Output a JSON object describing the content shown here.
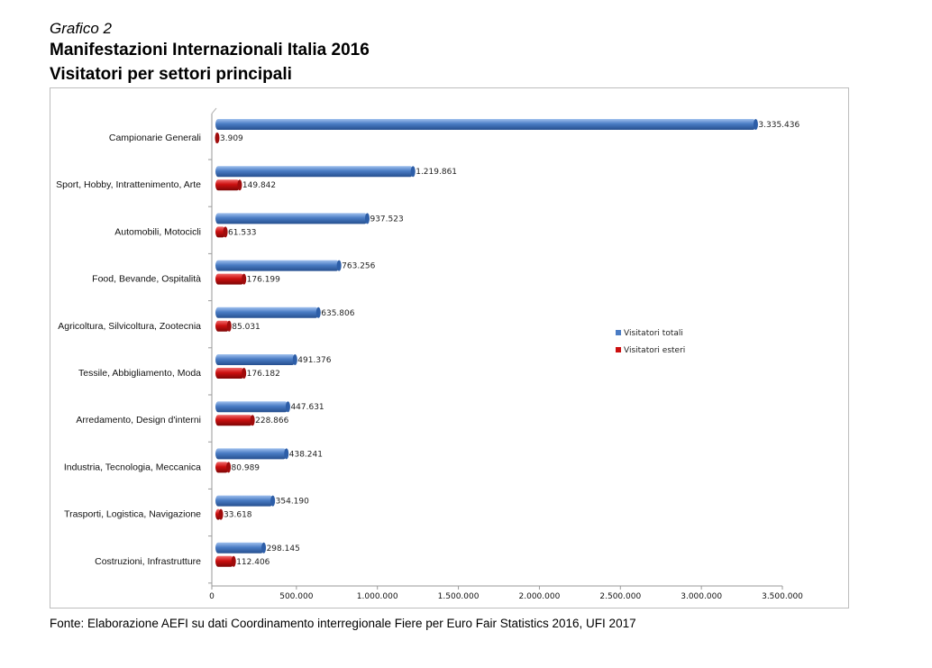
{
  "header": {
    "label": "Grafico 2",
    "title": "Manifestazioni Internazionali Italia 2016",
    "subtitle": "Visitatori per settori principali"
  },
  "source": "Fonte: Elaborazione AEFI su dati Coordinamento interregionale Fiere per Euro Fair Statistics 2016, UFI 2017",
  "colors": {
    "totali": "#4a7cc4",
    "esteri": "#cc1010"
  },
  "chart_data": {
    "type": "bar",
    "orientation": "horizontal",
    "title": "Manifestazioni Internazionali Italia 2016",
    "subtitle": "Visitatori per settori principali",
    "categories": [
      "Campionarie Generali",
      "Sport, Hobby, Intrattenimento, Arte",
      "Automobili, Motocicli",
      "Food, Bevande, Ospitalità",
      "Agricoltura, Silvicoltura, Zootecnia",
      "Tessile, Abbigliamento, Moda",
      "Arredamento, Design d'interni",
      "Industria, Tecnologia, Meccanica",
      "Trasporti, Logistica, Navigazione",
      "Costruzioni, Infrastrutture"
    ],
    "series": [
      {
        "name": "Visitatori totali",
        "values": [
          3335436,
          1219861,
          937523,
          763256,
          635806,
          491376,
          447631,
          438241,
          354190,
          298145
        ],
        "labels": [
          "3.335.436",
          "1.219.861",
          "937.523",
          "763.256",
          "635.806",
          "491.376",
          "447.631",
          "438.241",
          "354.190",
          "298.145"
        ]
      },
      {
        "name": "Visitatori esteri",
        "values": [
          3909,
          149842,
          61533,
          176199,
          85031,
          176182,
          228866,
          80989,
          33618,
          112406
        ],
        "labels": [
          "3.909",
          "149.842",
          "61.533",
          "176.199",
          "85.031",
          "176.182",
          "228.866",
          "80.989",
          "33.618",
          "112.406"
        ]
      }
    ],
    "xlim": [
      0,
      3500000
    ],
    "xticks": [
      0,
      500000,
      1000000,
      1500000,
      2000000,
      2500000,
      3000000,
      3500000
    ],
    "xtick_labels": [
      "0",
      "500.000",
      "1.000.000",
      "1.500.000",
      "2.000.000",
      "2.500.000",
      "3.000.000",
      "3.500.000"
    ],
    "legend_position": "right"
  }
}
